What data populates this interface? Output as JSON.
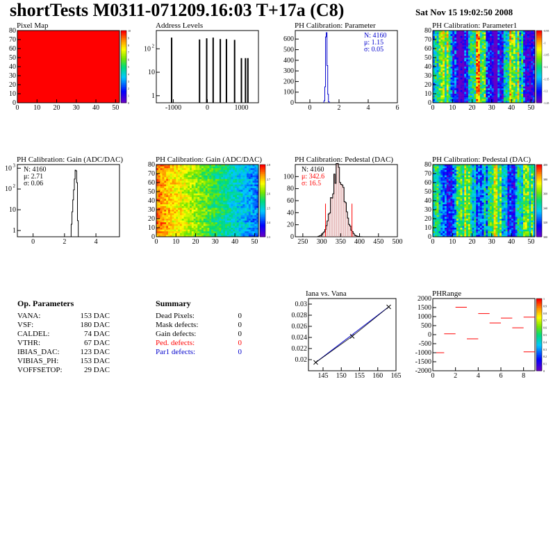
{
  "header": {
    "title": "shortTests M0311-071209.16:03 T+17a (C8)",
    "date": "Sat Nov 15 19:02:50 2008"
  },
  "colors": {
    "red": "#ff0000",
    "blue": "#0000cc",
    "hist": "#000000"
  },
  "chart_data": [
    {
      "id": "pixelmap",
      "type": "heatmap",
      "title": "Pixel Map",
      "xlim": [
        0,
        52
      ],
      "ylim": [
        0,
        80
      ],
      "xticks": [
        0,
        10,
        20,
        30,
        40,
        50
      ],
      "yticks": [
        0,
        10,
        20,
        30,
        40,
        50,
        60,
        70,
        80
      ],
      "zticks": [
        "0",
        "1",
        "2",
        "3",
        "4",
        "5",
        "6",
        "7",
        "8",
        "9",
        "10"
      ],
      "fill": "uniform-red"
    },
    {
      "id": "addr",
      "type": "bar",
      "title": "Address Levels",
      "xlim": [
        -1500,
        1500
      ],
      "ylim_log": [
        0.5,
        600
      ],
      "xticks": [
        "-1000",
        "0",
        "1000"
      ],
      "yticks": [
        "1",
        "10",
        "10^2"
      ],
      "spikes": [
        [
          -1050,
          300
        ],
        [
          -230,
          250
        ],
        [
          -20,
          280
        ],
        [
          170,
          300
        ],
        [
          380,
          260
        ],
        [
          560,
          260
        ],
        [
          800,
          240
        ],
        [
          1000,
          40
        ],
        [
          1120,
          40
        ],
        [
          1190,
          40
        ]
      ]
    },
    {
      "id": "phparam",
      "type": "bar",
      "title": "PH Calibration: Parameter",
      "xlim": [
        -1,
        6
      ],
      "ylim": [
        0,
        680
      ],
      "xticks": [
        "0",
        "2",
        "4",
        "6"
      ],
      "yticks": [
        "0",
        "100",
        "200",
        "300",
        "400",
        "500",
        "600"
      ],
      "stats": [
        "N: 4160",
        "μ: 1.15",
        "σ: 0.05"
      ]
    },
    {
      "id": "phparam1",
      "type": "heatmap",
      "title": "PH Calibration: Parameter1",
      "xlim": [
        0,
        52
      ],
      "ylim": [
        0,
        80
      ],
      "xticks": [
        0,
        10,
        20,
        30,
        40,
        50
      ],
      "yticks": [
        0,
        10,
        20,
        30,
        40,
        50,
        60,
        70,
        80
      ],
      "zticks": [
        "-1.25",
        "-1.2",
        "-1.15",
        "-1.1",
        "-1.05",
        "-1",
        "-0.95"
      ]
    },
    {
      "id": "gainhist",
      "type": "bar",
      "title": "PH Calibration: Gain (ADC/DAC)",
      "xlim": [
        -1,
        5.5
      ],
      "ylim_log": [
        0.5,
        1500
      ],
      "xticks": [
        "0",
        "2",
        "4"
      ],
      "yticks": [
        "1",
        "10",
        "10^2",
        "10^3"
      ],
      "stats": [
        "N: 4160",
        "μ: 2.71",
        "σ: 0.06"
      ]
    },
    {
      "id": "gainmap",
      "type": "heatmap",
      "title": "PH Calibration: Gain (ADC/DAC)",
      "xlim": [
        0,
        52
      ],
      "ylim": [
        0,
        80
      ],
      "xticks": [
        0,
        10,
        20,
        30,
        40,
        50
      ],
      "yticks": [
        0,
        10,
        20,
        30,
        40,
        50,
        60,
        70,
        80
      ],
      "zticks": [
        "2.3",
        "2.4",
        "2.5",
        "2.6",
        "2.7",
        "2.8"
      ]
    },
    {
      "id": "pedhist",
      "type": "bar",
      "title": "PH Calibration: Pedestal (DAC)",
      "xlim": [
        230,
        500
      ],
      "ylim": [
        0,
        120
      ],
      "xticks": [
        "250",
        "300",
        "350",
        "400",
        "450",
        "500"
      ],
      "yticks": [
        "0",
        "20",
        "40",
        "60",
        "80",
        "100"
      ],
      "stats": [
        "N: 4160",
        "μ: 342.6",
        "σ: 16.5"
      ],
      "cuts": [
        310,
        380
      ]
    },
    {
      "id": "pedmap",
      "type": "heatmap",
      "title": "PH Calibration: Pedestal (DAC)",
      "xlim": [
        0,
        52
      ],
      "ylim": [
        0,
        80
      ],
      "xticks": [
        0,
        10,
        20,
        30,
        40,
        50
      ],
      "yticks": [
        0,
        10,
        20,
        30,
        40,
        50,
        60,
        70,
        80
      ],
      "zticks": [
        "300",
        "320",
        "340",
        "360",
        "380",
        "400"
      ]
    },
    {
      "id": "iana",
      "type": "line",
      "title": "Iana vs. Vana",
      "xlim": [
        141,
        165
      ],
      "ylim": [
        0.018,
        0.031
      ],
      "xticks": [
        "145",
        "150",
        "155",
        "160",
        "165"
      ],
      "yticks": [
        "0.02",
        "0.022",
        "0.024",
        "0.026",
        "0.028",
        "0.03"
      ],
      "x": [
        143,
        153,
        163
      ],
      "y": [
        0.0195,
        0.0242,
        0.0295
      ]
    },
    {
      "id": "phrange",
      "type": "heatmap",
      "title": "PHRange",
      "xlim": [
        0,
        9
      ],
      "ylim": [
        -2000,
        2000
      ],
      "xticks": [
        "0",
        "2",
        "4",
        "6",
        "8"
      ],
      "yticks": [
        "2000",
        "1500",
        "1000",
        "500",
        "0",
        "-500",
        "-1000",
        "-1500",
        "-2000"
      ],
      "zticks": [
        "0",
        "0.1",
        "0.2",
        "0.3",
        "0.4",
        "0.5",
        "0.6",
        "0.7",
        "0.8",
        "0.9",
        "1"
      ],
      "segments": [
        [
          0,
          -1000
        ],
        [
          1,
          50
        ],
        [
          2,
          1520
        ],
        [
          3,
          -230
        ],
        [
          4,
          1170
        ],
        [
          5,
          650
        ],
        [
          6,
          920
        ],
        [
          7,
          380
        ],
        [
          8,
          970
        ],
        [
          8,
          -950
        ]
      ]
    }
  ],
  "params": {
    "title": "Op. Parameters",
    "rows": [
      {
        "k": "VANA:",
        "v": "153 DAC"
      },
      {
        "k": "VSF:",
        "v": "180 DAC"
      },
      {
        "k": "CALDEL:",
        "v": "74 DAC"
      },
      {
        "k": "VTHR:",
        "v": "67 DAC"
      },
      {
        "k": "IBIAS_DAC:",
        "v": "123 DAC"
      },
      {
        "k": "VIBIAS_PH:",
        "v": "153 DAC"
      },
      {
        "k": "VOFFSETOP:",
        "v": "29 DAC"
      }
    ]
  },
  "summary": {
    "title": "Summary",
    "rows": [
      {
        "k": "Dead Pixels:",
        "v": "0",
        "c": ""
      },
      {
        "k": "Mask defects:",
        "v": "0",
        "c": ""
      },
      {
        "k": "Gain defects:",
        "v": "0",
        "c": ""
      },
      {
        "k": "Ped. defects:",
        "v": "0",
        "c": "red"
      },
      {
        "k": "Par1 defects:",
        "v": "0",
        "c": "blue"
      }
    ]
  }
}
